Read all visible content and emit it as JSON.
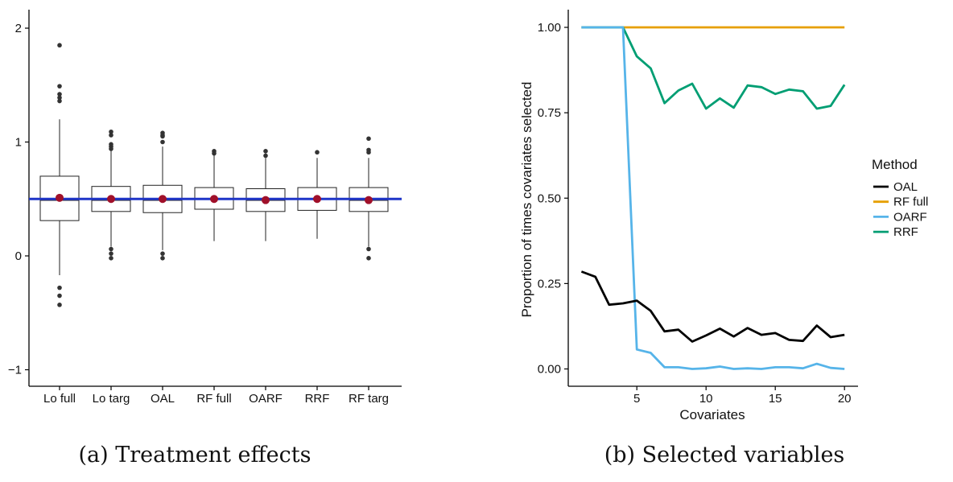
{
  "chart_data": [
    {
      "type": "box",
      "panel": "a",
      "caption": "(a) Treatment effects",
      "categories": [
        "Lo full",
        "Lo targ",
        "OAL",
        "RF full",
        "OARF",
        "RRF",
        "RF targ"
      ],
      "yticks": [
        "−1",
        "0",
        "1",
        "2"
      ],
      "ytick_values": [
        -1,
        0,
        1,
        2
      ],
      "ylim": [
        -1.15,
        2.15
      ],
      "reference_line": {
        "value": 0.5,
        "color": "#1f35c8"
      },
      "mean_color": "#a0102a",
      "boxes": [
        {
          "q1": 0.31,
          "median": 0.49,
          "q3": 0.7,
          "whisker_low": -0.17,
          "whisker_high": 1.2,
          "mean": 0.51,
          "outliers": [
            1.85,
            1.49,
            1.42,
            1.39,
            1.36,
            -0.28,
            -0.35,
            -0.43
          ]
        },
        {
          "q1": 0.39,
          "median": 0.49,
          "q3": 0.61,
          "whisker_low": 0.08,
          "whisker_high": 0.94,
          "mean": 0.5,
          "outliers": [
            1.09,
            1.06,
            0.98,
            0.96,
            0.94,
            0.06,
            0.02,
            -0.02
          ]
        },
        {
          "q1": 0.38,
          "median": 0.49,
          "q3": 0.62,
          "whisker_low": 0.05,
          "whisker_high": 0.96,
          "mean": 0.5,
          "outliers": [
            1.08,
            1.06,
            1.05,
            1.0,
            0.02,
            -0.02
          ]
        },
        {
          "q1": 0.41,
          "median": 0.5,
          "q3": 0.6,
          "whisker_low": 0.13,
          "whisker_high": 0.89,
          "mean": 0.5,
          "outliers": [
            0.92,
            0.9
          ]
        },
        {
          "q1": 0.39,
          "median": 0.49,
          "q3": 0.59,
          "whisker_low": 0.13,
          "whisker_high": 0.86,
          "mean": 0.49,
          "outliers": [
            0.92,
            0.88
          ]
        },
        {
          "q1": 0.4,
          "median": 0.5,
          "q3": 0.6,
          "whisker_low": 0.15,
          "whisker_high": 0.86,
          "mean": 0.5,
          "outliers": [
            0.91
          ]
        },
        {
          "q1": 0.39,
          "median": 0.49,
          "q3": 0.6,
          "whisker_low": 0.08,
          "whisker_high": 0.86,
          "mean": 0.49,
          "outliers": [
            1.03,
            0.93,
            0.91,
            0.06,
            -0.02
          ]
        }
      ]
    },
    {
      "type": "line",
      "panel": "b",
      "caption": "(b) Selected variables",
      "xlabel": "Covariates",
      "ylabel": "Proportion of times covariates selected",
      "xticks": [
        "5",
        "10",
        "15",
        "20"
      ],
      "xtick_values": [
        5,
        10,
        15,
        20
      ],
      "yticks": [
        "0.00",
        "0.25",
        "0.50",
        "0.75",
        "1.00"
      ],
      "ytick_values": [
        0,
        0.25,
        0.5,
        0.75,
        1.0
      ],
      "xlim": [
        0.05,
        20.95
      ],
      "ylim": [
        -0.05,
        1.05
      ],
      "x": [
        1,
        2,
        3,
        4,
        5,
        6,
        7,
        8,
        9,
        10,
        11,
        12,
        13,
        14,
        15,
        16,
        17,
        18,
        19,
        20
      ],
      "legend_title": "Method",
      "series": [
        {
          "name": "OAL",
          "color": "#000000",
          "values": [
            0.285,
            0.27,
            0.188,
            0.192,
            0.2,
            0.17,
            0.11,
            0.115,
            0.08,
            0.098,
            0.118,
            0.095,
            0.12,
            0.1,
            0.105,
            0.085,
            0.082,
            0.127,
            0.093,
            0.1
          ]
        },
        {
          "name": "RF full",
          "color": "#e69f00",
          "values": [
            1.0,
            1.0,
            1.0,
            1.0,
            1.0,
            1.0,
            1.0,
            1.0,
            1.0,
            1.0,
            1.0,
            1.0,
            1.0,
            1.0,
            1.0,
            1.0,
            1.0,
            1.0,
            1.0,
            1.0
          ]
        },
        {
          "name": "OARF",
          "color": "#56b4e9",
          "values": [
            1.0,
            1.0,
            1.0,
            1.0,
            0.057,
            0.047,
            0.005,
            0.005,
            0.0,
            0.002,
            0.007,
            0.0,
            0.002,
            0.0,
            0.005,
            0.005,
            0.002,
            0.015,
            0.003,
            0.0
          ]
        },
        {
          "name": "RRF",
          "color": "#009e73",
          "values": [
            1.0,
            1.0,
            1.0,
            1.0,
            0.915,
            0.88,
            0.778,
            0.815,
            0.835,
            0.762,
            0.792,
            0.765,
            0.83,
            0.825,
            0.805,
            0.818,
            0.813,
            0.762,
            0.77,
            0.832
          ]
        }
      ]
    }
  ]
}
